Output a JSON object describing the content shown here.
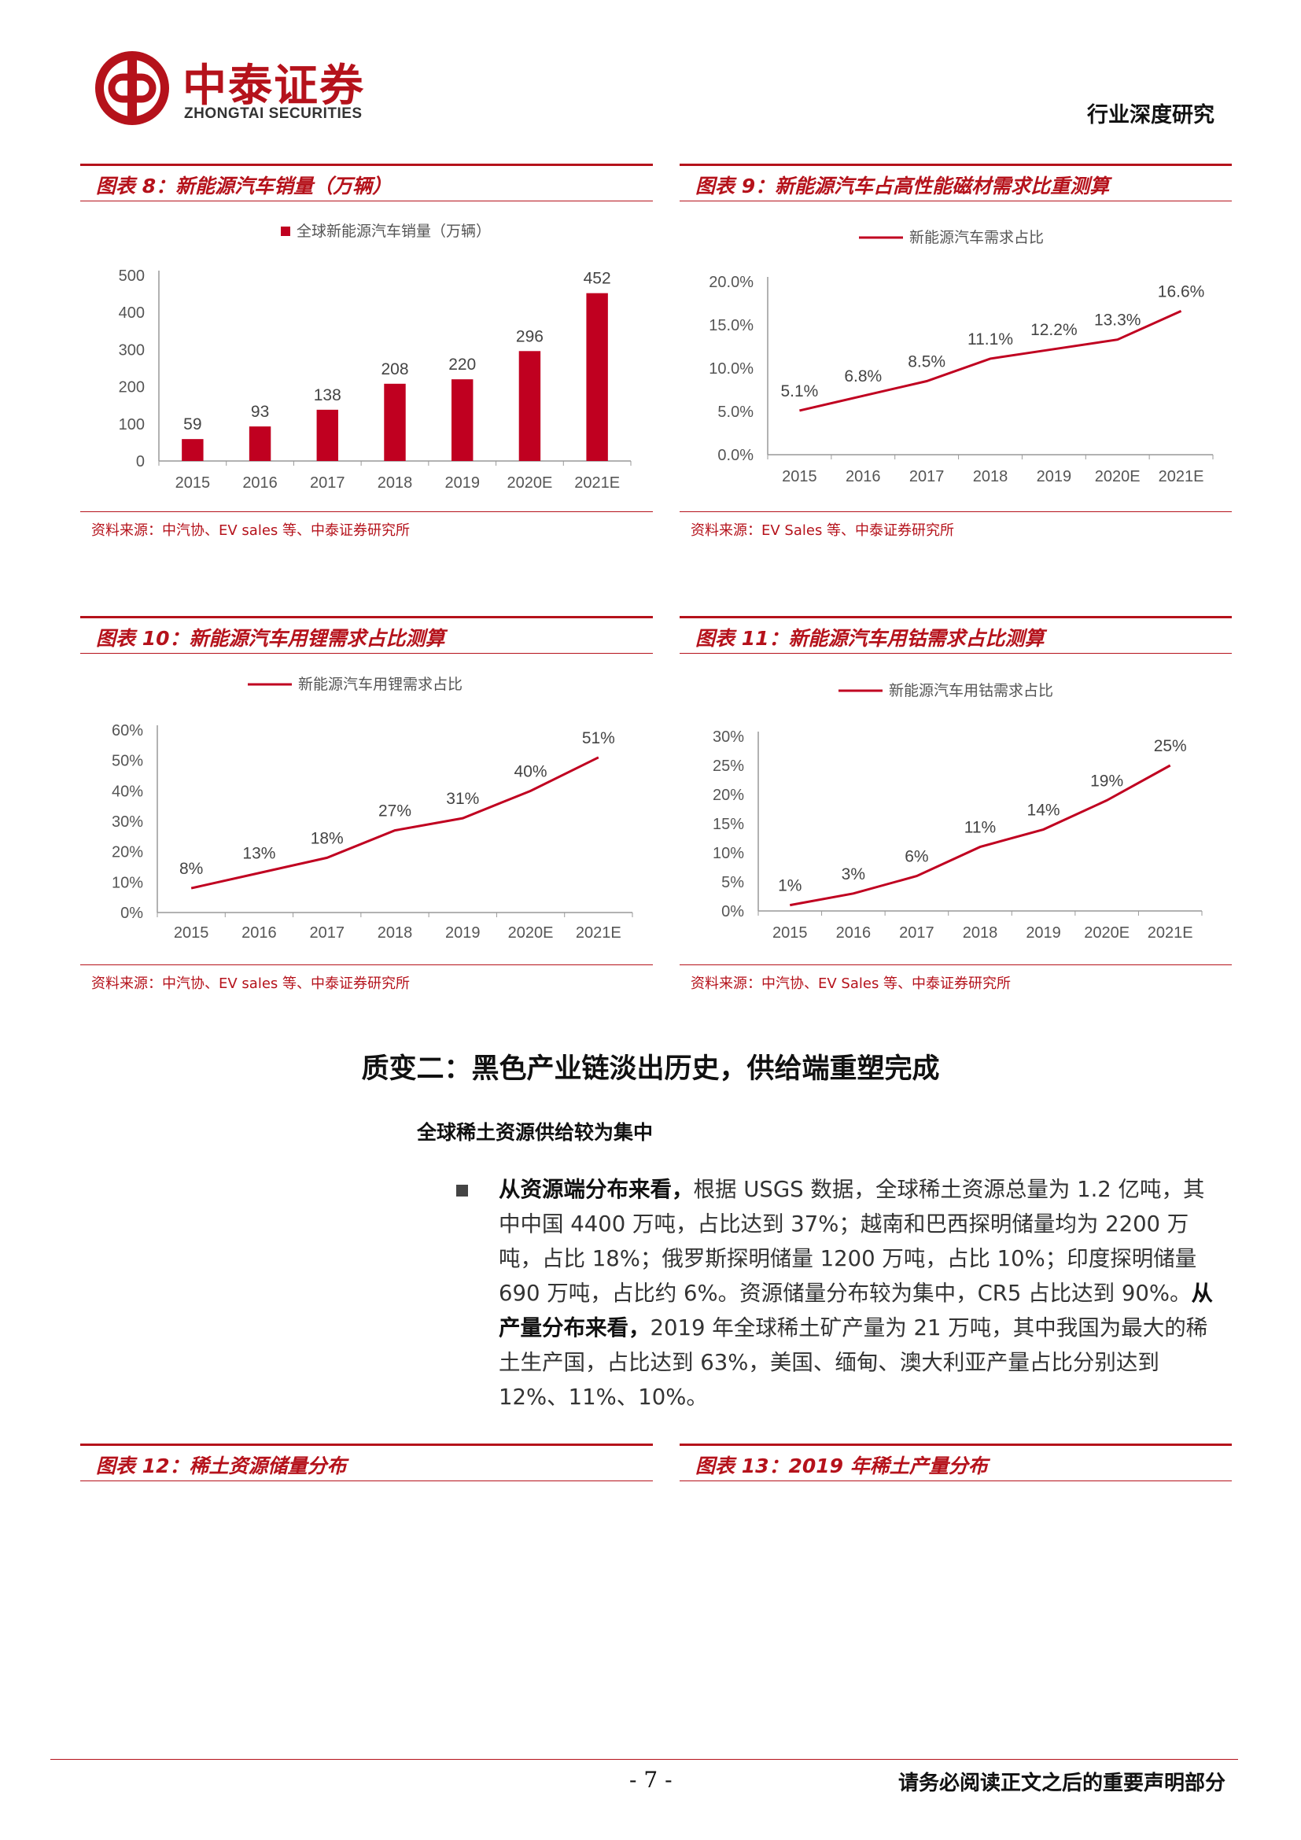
{
  "header": {
    "company_cn": "中泰证券",
    "company_en": "ZHONGTAI SECURITIES",
    "report_type": "行业深度研究"
  },
  "figures": {
    "fig8": {
      "title": "图表 8：新能源汽车销量（万辆）",
      "source": "资料来源：中汽协、EV sales 等、中泰证券研究所"
    },
    "fig9": {
      "title": "图表 9：新能源汽车占高性能磁材需求比重测算",
      "source": "资料来源：EV Sales 等、中泰证券研究所"
    },
    "fig10": {
      "title": "图表 10：新能源汽车用锂需求占比测算",
      "source": "资料来源：中汽协、EV sales 等、中泰证券研究所"
    },
    "fig11": {
      "title": "图表 11：新能源汽车用钴需求占比测算",
      "source": "资料来源：中汽协、EV Sales 等、中泰证券研究所"
    },
    "fig12": {
      "title": "图表 12：稀土资源储量分布"
    },
    "fig13": {
      "title": "图表 13：2019 年稀土产量分布"
    }
  },
  "chart_data": [
    {
      "type": "bar",
      "categories": [
        "2015",
        "2016",
        "2017",
        "2018",
        "2019",
        "2020E",
        "2021E"
      ],
      "series": [
        {
          "name": "全球新能源汽车销量（万辆）",
          "values": [
            59,
            93,
            138,
            208,
            220,
            296,
            452
          ]
        }
      ],
      "yticks": [
        "0",
        "100",
        "200",
        "300",
        "400",
        "500"
      ],
      "ylim": [
        0,
        500
      ],
      "legend": "top",
      "color": "#c00020"
    },
    {
      "type": "line",
      "categories": [
        "2015",
        "2016",
        "2017",
        "2018",
        "2019",
        "2020E",
        "2021E"
      ],
      "series": [
        {
          "name": "新能源汽车需求占比",
          "values": [
            5.1,
            6.8,
            8.5,
            11.1,
            12.2,
            13.3,
            16.6
          ]
        }
      ],
      "labels": [
        "5.1%",
        "6.8%",
        "8.5%",
        "11.1%",
        "12.2%",
        "13.3%",
        "16.6%"
      ],
      "yticks": [
        "0.0%",
        "5.0%",
        "10.0%",
        "15.0%",
        "20.0%"
      ],
      "ylim": [
        0,
        20
      ],
      "legend": "top",
      "color": "#c00020"
    },
    {
      "type": "line",
      "categories": [
        "2015",
        "2016",
        "2017",
        "2018",
        "2019",
        "2020E",
        "2021E"
      ],
      "series": [
        {
          "name": "新能源汽车用锂需求占比",
          "values": [
            8,
            13,
            18,
            27,
            31,
            40,
            51
          ]
        }
      ],
      "labels": [
        "8%",
        "13%",
        "18%",
        "27%",
        "31%",
        "40%",
        "51%"
      ],
      "yticks": [
        "0%",
        "10%",
        "20%",
        "30%",
        "40%",
        "50%",
        "60%"
      ],
      "ylim": [
        0,
        60
      ],
      "legend": "top",
      "color": "#c00020"
    },
    {
      "type": "line",
      "categories": [
        "2015",
        "2016",
        "2017",
        "2018",
        "2019",
        "2020E",
        "2021E"
      ],
      "series": [
        {
          "name": "新能源汽车用钴需求占比",
          "values": [
            1,
            3,
            6,
            11,
            14,
            19,
            25
          ]
        }
      ],
      "labels": [
        "1%",
        "3%",
        "6%",
        "11%",
        "14%",
        "19%",
        "25%"
      ],
      "yticks": [
        "0%",
        "5%",
        "10%",
        "15%",
        "20%",
        "25%",
        "30%"
      ],
      "ylim": [
        0,
        30
      ],
      "legend": "top",
      "color": "#c00020"
    }
  ],
  "body": {
    "section_title": "质变二：黑色产业链淡出历史，供给端重塑完成",
    "subtitle": "全球稀土资源供给较为集中",
    "para_b1": "从资源端分布来看，",
    "para_t1": "根据 USGS 数据，全球稀土资源总量为 1.2 亿吨，其中中国 4400 万吨，占比达到 37%；越南和巴西探明储量均为 2200 万吨，占比 18%；俄罗斯探明储量 1200 万吨，占比 10%；印度探明储量 690 万吨，占比约 6%。资源储量分布较为集中，CR5 占比达到 90%。",
    "para_b2": "从产量分布来看，",
    "para_t2": "2019 年全球稀土矿产量为 21 万吨，其中我国为最大的稀土生产国，占比达到 63%，美国、缅甸、澳大利亚产量占比分别达到 12%、11%、10%。"
  },
  "footer": {
    "page": "- 7 -",
    "note": "请务必阅读正文之后的重要声明部分"
  }
}
